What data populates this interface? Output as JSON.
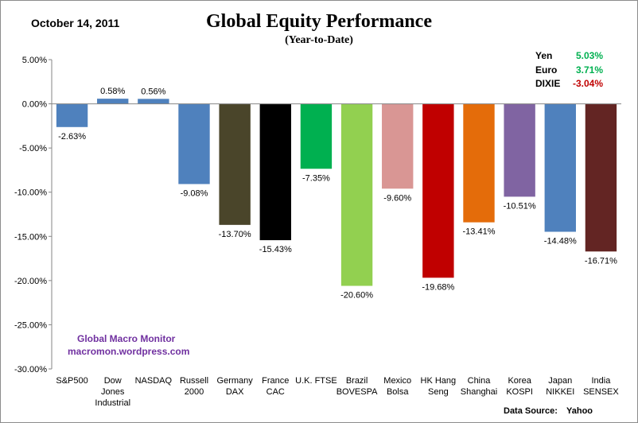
{
  "header": {
    "date": "October 14,  2011"
  },
  "chart_data": {
    "type": "bar",
    "title": "Global Equity Performance",
    "subtitle": "(Year-to-Date)",
    "ylim": [
      -30,
      5
    ],
    "yticks": [
      5,
      0,
      -5,
      -10,
      -15,
      -20,
      -25,
      -30
    ],
    "ytick_labels": [
      "5.00%",
      "0.00%",
      "-5.00%",
      "-10.00%",
      "-15.00%",
      "-20.00%",
      "-25.00%",
      "-30.00%"
    ],
    "categories": [
      [
        "S&P500"
      ],
      [
        "Dow",
        "Jones",
        "Industrial"
      ],
      [
        "NASDAQ"
      ],
      [
        "Russell",
        "2000"
      ],
      [
        "Germany",
        "DAX"
      ],
      [
        "France",
        "CAC"
      ],
      [
        "U.K. FTSE"
      ],
      [
        "Brazil",
        "BOVESPA"
      ],
      [
        "Mexico",
        "Bolsa"
      ],
      [
        "HK Hang",
        "Seng"
      ],
      [
        "China",
        "Shanghai"
      ],
      [
        "Korea",
        "KOSPI"
      ],
      [
        "Japan",
        "NIKKEI"
      ],
      [
        "India",
        "SENSEX"
      ]
    ],
    "values": [
      -2.63,
      0.58,
      0.56,
      -9.08,
      -13.7,
      -15.43,
      -7.35,
      -20.6,
      -9.6,
      -19.68,
      -13.41,
      -10.51,
      -14.48,
      -16.71
    ],
    "value_labels": [
      "-2.63%",
      "0.58%",
      "0.56%",
      "-9.08%",
      "-13.70%",
      "-15.43%",
      "-7.35%",
      "-20.60%",
      "-9.60%",
      "-19.68%",
      "-13.41%",
      "-10.51%",
      "-14.48%",
      "-16.71%"
    ],
    "colors": [
      "#4f81bd",
      "#4f81bd",
      "#4f81bd",
      "#4f81bd",
      "#4a452a",
      "#000000",
      "#00b050",
      "#92d050",
      "#d99694",
      "#c00000",
      "#e46c0a",
      "#8064a2",
      "#4f81bd",
      "#632523"
    ]
  },
  "currencies": [
    {
      "name": "Yen",
      "value": "5.03%",
      "color": "#00b050"
    },
    {
      "name": "Euro",
      "value": "3.71%",
      "color": "#00b050"
    },
    {
      "name": "DIXIE",
      "value": "-3.04%",
      "color": "#c00000"
    }
  ],
  "watermark": {
    "line1": "Global  Macro  Monitor",
    "line2": "macromon.wordpress.com"
  },
  "source": {
    "label": "Data Source:",
    "value": "Yahoo"
  }
}
